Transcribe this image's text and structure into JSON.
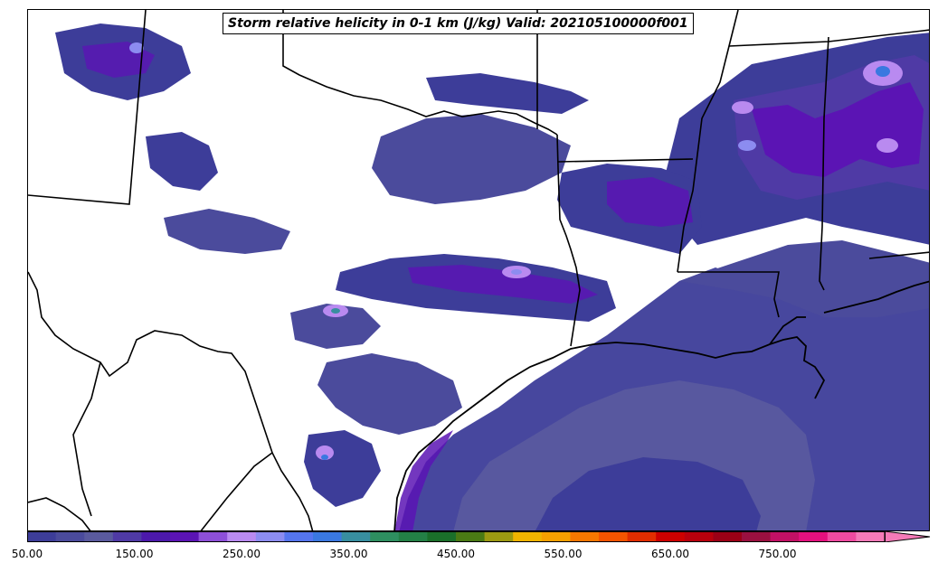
{
  "title": "Storm relative helicity in 0-1 km (J/kg) Valid: 202105100000f001",
  "colorbar": {
    "min": 50,
    "max": 850,
    "step": 25,
    "extend": "max",
    "colors": [
      "#3d3d99",
      "#4b4b9c",
      "#5a5a9e",
      "#4f3aa5",
      "#4c19ab",
      "#5b14b4",
      "#8d4fd8",
      "#b98af0",
      "#8c8cf0",
      "#5575ee",
      "#3a78e0",
      "#388ea0",
      "#2e8f60",
      "#238046",
      "#1a6f2a",
      "#4a7a14",
      "#9c9a12",
      "#f0b400",
      "#f7a000",
      "#f77700",
      "#f45400",
      "#e12d00",
      "#cc0000",
      "#b8000c",
      "#9b0016",
      "#9a1040",
      "#c21065",
      "#e4107e",
      "#ef4aa0",
      "#f57ab8"
    ],
    "ticks": [
      "50.00",
      "150.00",
      "250.00",
      "350.00",
      "450.00",
      "550.00",
      "650.00",
      "750.00"
    ]
  },
  "map": {
    "region": "South-central United States and Gulf of Mexico",
    "fill_colors": {
      "low": "#3d3d99",
      "mid": "#5a5a9e",
      "high": "#5b14b4",
      "peak": "#b98af0",
      "max": "#3a78e0"
    }
  }
}
